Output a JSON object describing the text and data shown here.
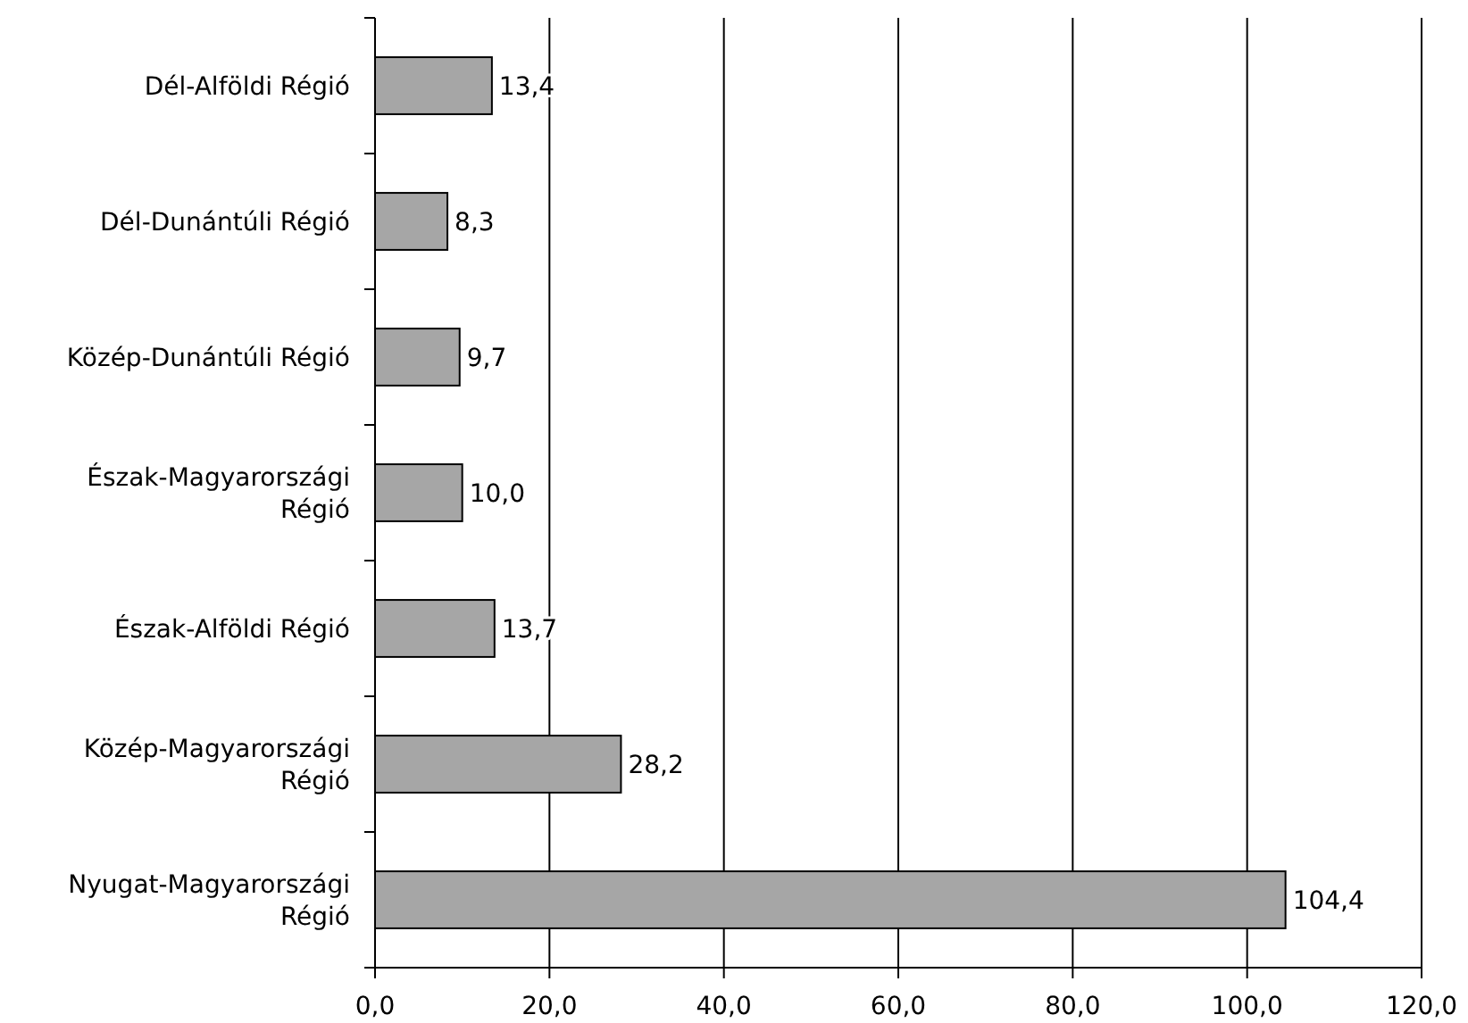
{
  "chart_data": {
    "type": "bar",
    "orientation": "horizontal",
    "categories": [
      "Dél-Alföldi Régió",
      "Dél-Dunántúli Régió",
      "Közép-Dunántúli Régió",
      "Észak-Magyarországi Régió",
      "Észak-Alföldi Régió",
      "Közép-Magyarországi Régió",
      "Nyugat-Magyarországi Régió"
    ],
    "values": [
      13.4,
      8.3,
      9.7,
      10.0,
      13.7,
      28.2,
      104.4
    ],
    "value_labels": [
      "13,4",
      "8,3",
      "9,7",
      "10,0",
      "13,7",
      "28,2",
      "104,4"
    ],
    "color": "#a6a6a6",
    "xlim": [
      0,
      120
    ],
    "xticks": [
      {
        "value": 0,
        "label": "0,0"
      },
      {
        "value": 20,
        "label": "20,0"
      },
      {
        "value": 40,
        "label": "40,0"
      },
      {
        "value": 60,
        "label": "60,0"
      },
      {
        "value": 80,
        "label": "80,0"
      },
      {
        "value": 100,
        "label": "100,0"
      },
      {
        "value": 120,
        "label": "120,0"
      }
    ],
    "grid": "x"
  }
}
